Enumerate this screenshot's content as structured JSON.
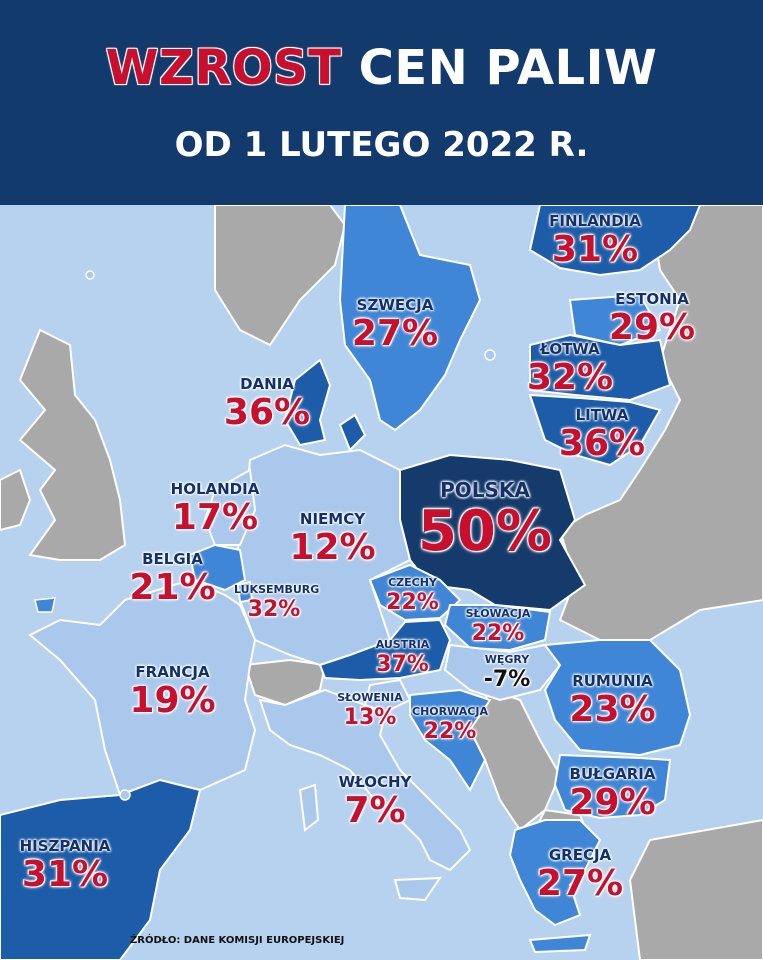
{
  "header": {
    "title_highlight": "WZROST",
    "title_rest": "CEN PALIW",
    "subtitle": "OD 1 LUTEGO 2022 R."
  },
  "colors": {
    "sea": "#b7d2ee",
    "header_bg": "#133a6c",
    "accent_red": "#c8102e",
    "light_country": "#a9c8ec",
    "mid_country": "#3f86d6",
    "dark_country": "#1c5ca8",
    "poland": "#153b6c",
    "non_eu": "#a9a9a9"
  },
  "countries": [
    {
      "name": "FINLANDIA",
      "value": "31%"
    },
    {
      "name": "SZWECJA",
      "value": "27%"
    },
    {
      "name": "ESTONIA",
      "value": "29%"
    },
    {
      "name": "ŁOTWA",
      "value": "32%"
    },
    {
      "name": "LITWA",
      "value": "36%"
    },
    {
      "name": "DANIA",
      "value": "36%"
    },
    {
      "name": "POLSKA",
      "value": "50%"
    },
    {
      "name": "HOLANDIA",
      "value": "17%"
    },
    {
      "name": "NIEMCY",
      "value": "12%"
    },
    {
      "name": "BELGIA",
      "value": "21%"
    },
    {
      "name": "LUKSEMBURG",
      "value": "32%"
    },
    {
      "name": "CZECHY",
      "value": "22%"
    },
    {
      "name": "SŁOWACJA",
      "value": "22%"
    },
    {
      "name": "AUSTRIA",
      "value": "37%"
    },
    {
      "name": "WĘGRY",
      "value": "-7%"
    },
    {
      "name": "FRANCJA",
      "value": "19%"
    },
    {
      "name": "SŁOWENIA",
      "value": "13%"
    },
    {
      "name": "CHORWACJA",
      "value": "22%"
    },
    {
      "name": "RUMUNIA",
      "value": "23%"
    },
    {
      "name": "BUŁGARIA",
      "value": "29%"
    },
    {
      "name": "WŁOCHY",
      "value": "7%"
    },
    {
      "name": "GRECJA",
      "value": "27%"
    },
    {
      "name": "HISZPANIA",
      "value": "31%"
    }
  ],
  "source": "ŹRÓDŁO: DANE KOMISJI EUROPEJSKIEJ"
}
